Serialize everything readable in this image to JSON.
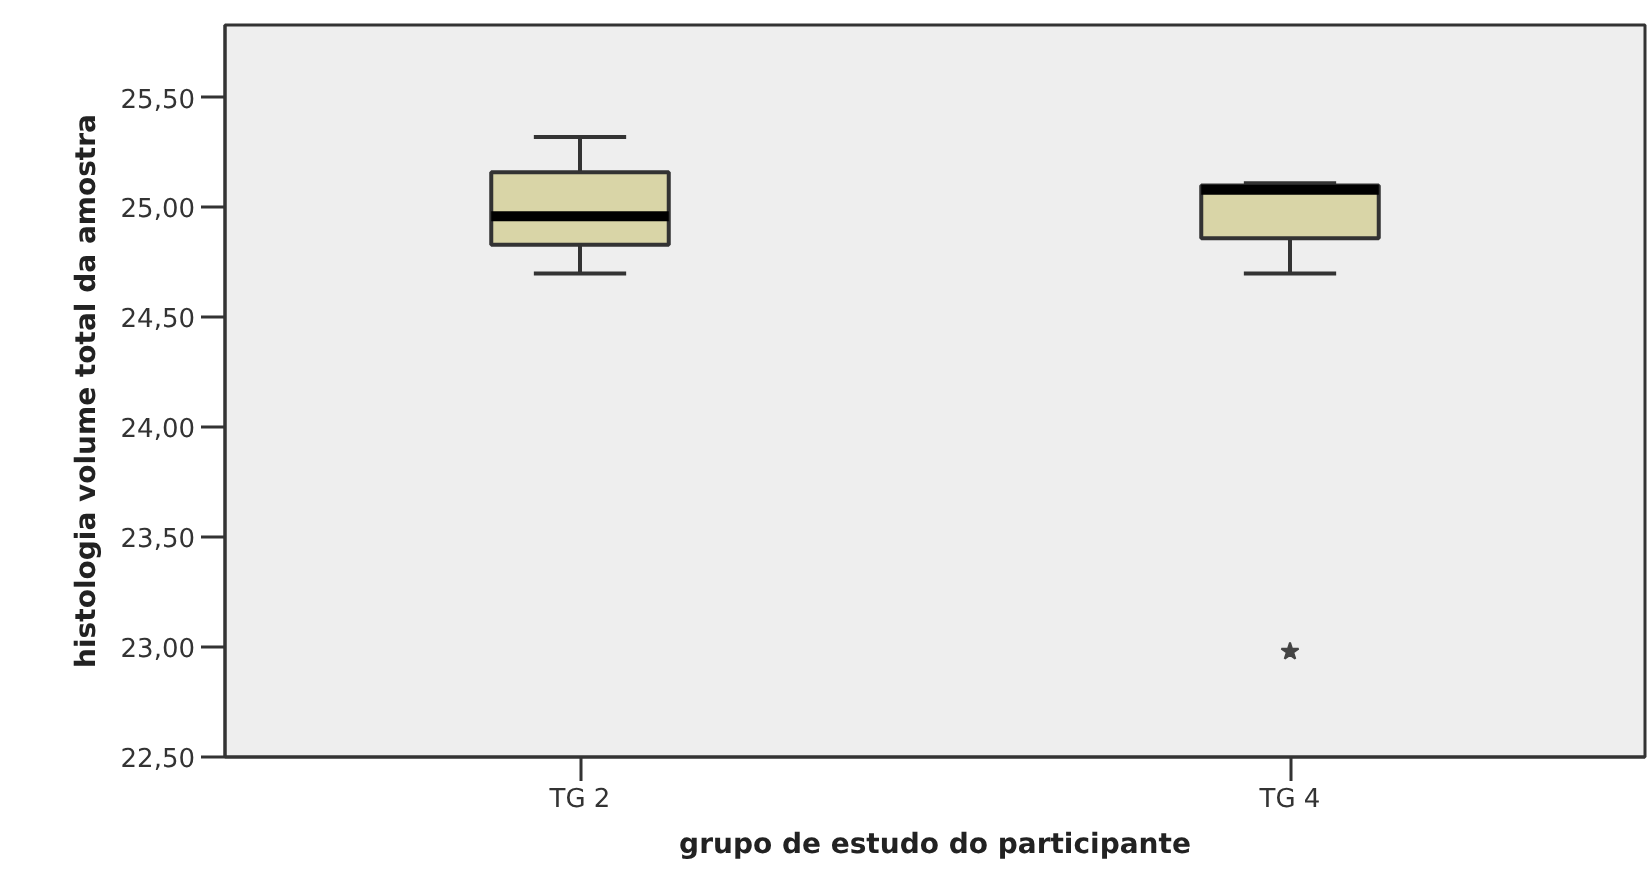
{
  "chart_data": {
    "type": "box",
    "xlabel": "grupo de estudo do participante",
    "ylabel": "histologia volume total da amostra",
    "categories": [
      "TG 2",
      "TG 4"
    ],
    "series": [
      {
        "color": "#d9d5a7",
        "boxes": [
          {
            "low": 24.7,
            "q1": 24.83,
            "median": 24.96,
            "q3": 25.16,
            "high": 25.32
          },
          {
            "low": 24.7,
            "q1": 24.86,
            "median": 25.08,
            "q3": 25.1,
            "high": 25.11,
            "outliers": [
              22.98
            ]
          }
        ]
      }
    ],
    "marker": "star",
    "ylim": [
      22.5,
      25.83
    ],
    "yticks": [
      {
        "value": 22.5,
        "label": "22,50"
      },
      {
        "value": 23.0,
        "label": "23,00"
      },
      {
        "value": 23.5,
        "label": "23,50"
      },
      {
        "value": 24.0,
        "label": "24,00"
      },
      {
        "value": 24.5,
        "label": "24,50"
      },
      {
        "value": 25.0,
        "label": "25,00"
      },
      {
        "value": 25.5,
        "label": "25,50"
      }
    ]
  }
}
